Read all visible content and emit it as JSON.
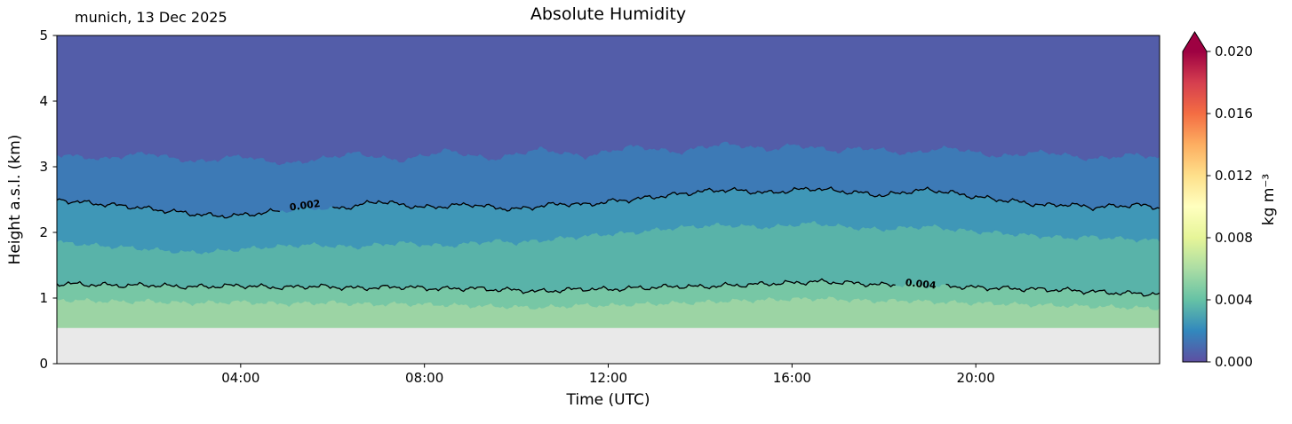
{
  "chart_data": {
    "type": "filled_contour",
    "title": "Absolute Humidity",
    "annotation": "munich, 13 Dec 2025",
    "axes": {
      "xlabel": "Time (UTC)",
      "ylabel": "Height a.s.l. (km)",
      "xlim_hours": [
        0,
        24
      ],
      "ylim_km": [
        0,
        5
      ],
      "x_ticks": [
        {
          "hour": 4,
          "label": "04:00"
        },
        {
          "hour": 8,
          "label": "08:00"
        },
        {
          "hour": 12,
          "label": "12:00"
        },
        {
          "hour": 16,
          "label": "16:00"
        },
        {
          "hour": 20,
          "label": "20:00"
        }
      ],
      "y_ticks": [
        {
          "km": 0,
          "label": "0"
        },
        {
          "km": 1,
          "label": "1"
        },
        {
          "km": 2,
          "label": "2"
        },
        {
          "km": 3,
          "label": "3"
        },
        {
          "km": 4,
          "label": "4"
        },
        {
          "km": 5,
          "label": "5"
        }
      ]
    },
    "colorbar": {
      "label": "kg m⁻³",
      "vmin": 0,
      "vmax": 0.02,
      "extend": "max",
      "ticks": [
        {
          "value": 0,
          "label": "0.000"
        },
        {
          "value": 0.004,
          "label": "0.004"
        },
        {
          "value": 0.008,
          "label": "0.008"
        },
        {
          "value": 0.012,
          "label": "0.012"
        },
        {
          "value": 0.016,
          "label": "0.016"
        },
        {
          "value": 0.02,
          "label": "0.020"
        }
      ],
      "colormap_low_to_high": [
        "#5e4fa2",
        "#3288bd",
        "#66c2a5",
        "#abdda4",
        "#e6f598",
        "#ffffbf",
        "#fee08b",
        "#fdae61",
        "#f46d43",
        "#d53e4f",
        "#9e0142"
      ]
    },
    "surface_altitude_km": 0.55,
    "below_surface_color": "#e9e9e9",
    "x_hours": [
      0,
      0.5,
      1,
      1.5,
      2,
      2.5,
      3,
      3.5,
      4,
      4.5,
      5,
      5.5,
      6,
      6.5,
      7,
      7.5,
      8,
      8.5,
      9,
      9.5,
      10,
      10.5,
      11,
      11.5,
      12,
      12.5,
      13,
      13.5,
      14,
      14.5,
      15,
      15.5,
      16,
      16.5,
      17,
      17.5,
      18,
      18.5,
      19,
      19.5,
      20,
      20.5,
      21,
      21.5,
      22,
      22.5,
      23,
      23.5,
      24
    ],
    "contour_boundary_heights_km": {
      "level_0.001": [
        3.2,
        3.16,
        3.12,
        3.18,
        3.22,
        3.14,
        3.08,
        3.12,
        3.18,
        3.1,
        3.05,
        3.1,
        3.16,
        3.22,
        3.15,
        3.1,
        3.18,
        3.26,
        3.18,
        3.12,
        3.2,
        3.28,
        3.22,
        3.16,
        3.24,
        3.32,
        3.28,
        3.22,
        3.3,
        3.36,
        3.32,
        3.26,
        3.34,
        3.3,
        3.24,
        3.3,
        3.26,
        3.2,
        3.26,
        3.3,
        3.22,
        3.16,
        3.2,
        3.24,
        3.18,
        3.12,
        3.16,
        3.2,
        3.14
      ],
      "level_0.002": [
        2.5,
        2.46,
        2.43,
        2.4,
        2.36,
        2.32,
        2.28,
        2.25,
        2.26,
        2.3,
        2.34,
        2.38,
        2.36,
        2.4,
        2.48,
        2.42,
        2.38,
        2.4,
        2.43,
        2.38,
        2.35,
        2.4,
        2.44,
        2.42,
        2.47,
        2.5,
        2.54,
        2.58,
        2.62,
        2.65,
        2.63,
        2.6,
        2.64,
        2.67,
        2.63,
        2.6,
        2.56,
        2.62,
        2.65,
        2.6,
        2.54,
        2.5,
        2.46,
        2.41,
        2.43,
        2.38,
        2.4,
        2.42,
        2.38
      ],
      "level_0.003": [
        1.86,
        1.83,
        1.8,
        1.78,
        1.75,
        1.72,
        1.7,
        1.72,
        1.75,
        1.78,
        1.8,
        1.82,
        1.8,
        1.78,
        1.82,
        1.85,
        1.82,
        1.8,
        1.84,
        1.88,
        1.85,
        1.88,
        1.92,
        1.95,
        1.98,
        2.0,
        2.04,
        2.08,
        2.1,
        2.12,
        2.1,
        2.08,
        2.12,
        2.15,
        2.1,
        2.07,
        2.05,
        2.08,
        2.1,
        2.05,
        2.02,
        2.0,
        1.97,
        1.95,
        1.92,
        1.94,
        1.92,
        1.9,
        1.88
      ],
      "level_0.004": [
        1.22,
        1.21,
        1.2,
        1.19,
        1.2,
        1.18,
        1.17,
        1.18,
        1.19,
        1.17,
        1.16,
        1.18,
        1.17,
        1.15,
        1.16,
        1.17,
        1.15,
        1.14,
        1.15,
        1.13,
        1.12,
        1.1,
        1.12,
        1.14,
        1.13,
        1.15,
        1.16,
        1.18,
        1.17,
        1.19,
        1.2,
        1.22,
        1.23,
        1.25,
        1.24,
        1.22,
        1.2,
        1.21,
        1.19,
        1.18,
        1.16,
        1.15,
        1.14,
        1.13,
        1.12,
        1.1,
        1.08,
        1.07,
        1.06
      ],
      "level_0.005": [
        0.98,
        0.97,
        0.96,
        0.95,
        0.96,
        0.94,
        0.93,
        0.94,
        0.95,
        0.93,
        0.92,
        0.93,
        0.94,
        0.92,
        0.91,
        0.92,
        0.91,
        0.9,
        0.89,
        0.88,
        0.87,
        0.86,
        0.88,
        0.9,
        0.89,
        0.91,
        0.92,
        0.93,
        0.94,
        0.96,
        0.97,
        0.98,
        0.99,
        1.0,
        0.99,
        0.97,
        0.96,
        0.97,
        0.95,
        0.94,
        0.93,
        0.92,
        0.91,
        0.9,
        0.89,
        0.88,
        0.87,
        0.86,
        0.85
      ]
    },
    "bands_bottom_to_top": [
      {
        "range_kg_m3": "0.005-0.006",
        "color": "#9cd4a4"
      },
      {
        "range_kg_m3": "0.004-0.005",
        "color": "#77c7a5"
      },
      {
        "range_kg_m3": "0.003-0.004",
        "color": "#59b3a9"
      },
      {
        "range_kg_m3": "0.002-0.003",
        "color": "#3f97b7"
      },
      {
        "range_kg_m3": "0.001-0.002",
        "color": "#3d7ab6"
      },
      {
        "range_kg_m3": "0.000-0.001",
        "color": "#535da9"
      }
    ],
    "labeled_contours": [
      {
        "level": 0.002,
        "label": "0.002",
        "label_hour": 5.4
      },
      {
        "level": 0.004,
        "label": "0.004",
        "label_hour": 18.8
      }
    ]
  }
}
